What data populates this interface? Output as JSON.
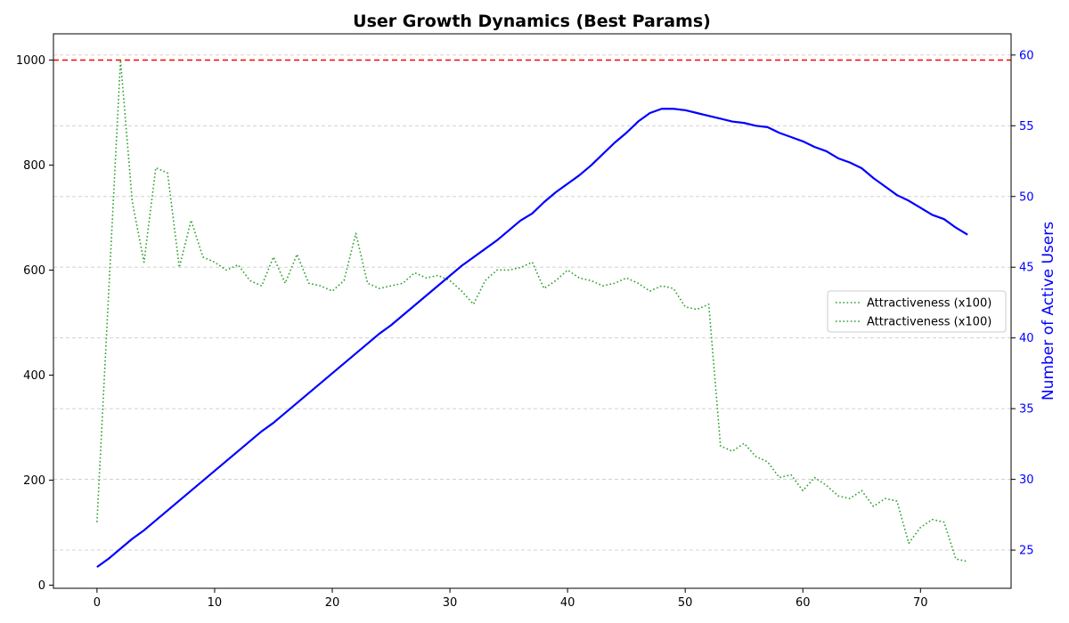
{
  "chart_data": {
    "type": "line",
    "title": "User Growth Dynamics (Best Params)",
    "xlabel": "",
    "ylabel_left": "",
    "ylabel_right": "Number of Active Users",
    "xlim": [
      -3.7,
      77.7
    ],
    "ylim_left": [
      -6,
      1050
    ],
    "ylim_right": [
      22.3,
      61.5
    ],
    "x_ticks": [
      0,
      10,
      20,
      30,
      40,
      50,
      60,
      70
    ],
    "y_ticks_left": [
      0,
      200,
      400,
      600,
      800,
      1000
    ],
    "y_ticks_right": [
      25,
      30,
      35,
      40,
      45,
      50,
      55,
      60
    ],
    "grid": "horizontal dashed, aligned to right-axis ticks",
    "legend_position": "center-right",
    "legend": [
      "Attractiveness (x100)",
      "Attractiveness (x100)"
    ],
    "hline": {
      "axis": "left",
      "y": 1000,
      "color": "#ff0000",
      "style": "dashed"
    },
    "series": [
      {
        "axis": "left",
        "color": "#2ca02c",
        "style": "dotted",
        "x": [
          0,
          1,
          2,
          3,
          4,
          5,
          6,
          7,
          8,
          9,
          10,
          11,
          12,
          13,
          14,
          15,
          16,
          17,
          18,
          19,
          20,
          21,
          22,
          23,
          24,
          25,
          26,
          27,
          28,
          29,
          30,
          31,
          32,
          33,
          34,
          35,
          36,
          37,
          38,
          39,
          40,
          41,
          42,
          43,
          44,
          45,
          46,
          47,
          48,
          49,
          50,
          51,
          52,
          53,
          54,
          55,
          56,
          57,
          58,
          59,
          60,
          61,
          62,
          63,
          64,
          65,
          66,
          67,
          68,
          69,
          70,
          71,
          72,
          73,
          74
        ],
        "values": [
          120,
          560,
          1000,
          730,
          615,
          795,
          785,
          605,
          695,
          625,
          615,
          600,
          610,
          580,
          570,
          625,
          575,
          630,
          575,
          570,
          560,
          580,
          670,
          575,
          565,
          570,
          575,
          595,
          585,
          590,
          580,
          560,
          535,
          580,
          600,
          600,
          605,
          615,
          565,
          580,
          600,
          585,
          580,
          570,
          575,
          585,
          575,
          560,
          570,
          565,
          530,
          525,
          535,
          265,
          255,
          270,
          245,
          235,
          205,
          210,
          180,
          205,
          190,
          170,
          165,
          180,
          150,
          165,
          160,
          80,
          110,
          125,
          120,
          50,
          45
        ]
      },
      {
        "axis": "right",
        "color": "#0000ff",
        "style": "solid",
        "x": [
          0,
          1,
          2,
          3,
          4,
          5,
          6,
          7,
          8,
          9,
          10,
          11,
          12,
          13,
          14,
          15,
          16,
          17,
          18,
          19,
          20,
          21,
          22,
          23,
          24,
          25,
          26,
          27,
          28,
          29,
          30,
          31,
          32,
          33,
          34,
          35,
          36,
          37,
          38,
          39,
          40,
          41,
          42,
          43,
          44,
          45,
          46,
          47,
          48,
          49,
          50,
          51,
          52,
          53,
          54,
          55,
          56,
          57,
          58,
          59,
          60,
          61,
          62,
          63,
          64,
          65,
          66,
          67,
          68,
          69,
          70,
          71,
          72,
          73,
          74
        ],
        "values": [
          23.8,
          24.4,
          25.1,
          25.8,
          26.4,
          27.1,
          27.8,
          28.5,
          29.2,
          29.9,
          30.6,
          31.3,
          32.0,
          32.7,
          33.4,
          34.0,
          34.7,
          35.4,
          36.1,
          36.8,
          37.5,
          38.2,
          38.9,
          39.6,
          40.3,
          40.9,
          41.6,
          42.3,
          43.0,
          43.7,
          44.4,
          45.1,
          45.7,
          46.3,
          46.9,
          47.6,
          48.3,
          48.8,
          49.6,
          50.3,
          50.9,
          51.5,
          52.2,
          53.0,
          53.8,
          54.5,
          55.3,
          55.9,
          56.2,
          56.2,
          56.1,
          55.9,
          55.7,
          55.5,
          55.3,
          55.2,
          55.0,
          54.9,
          54.5,
          54.2,
          53.9,
          53.5,
          53.2,
          52.7,
          52.4,
          52.0,
          51.3,
          50.7,
          50.1,
          49.7,
          49.2,
          48.7,
          48.4,
          47.8,
          47.3
        ]
      }
    ]
  }
}
